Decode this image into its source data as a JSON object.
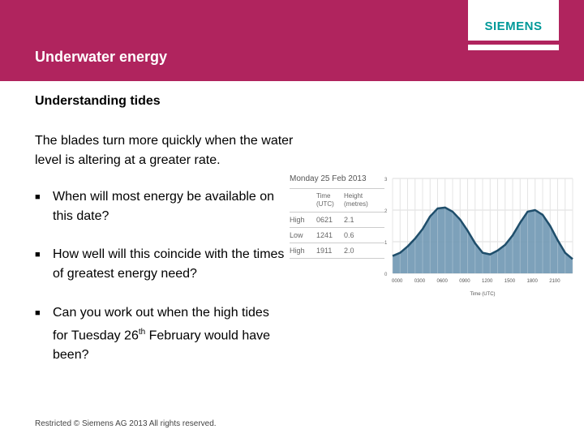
{
  "header": {
    "title": "Underwater energy",
    "logo": "SIEMENS",
    "color": "#b0245e"
  },
  "subtitle": "Understanding tides",
  "intro": "The blades turn more quickly when the water level is altering at a greater rate.",
  "bullets": [
    {
      "text": "When will most energy be available on this date?"
    },
    {
      "text": "How well will this coincide with the times of greatest energy need?"
    },
    {
      "pre": "Can you work out when the high tides for Tuesday 26",
      "sup": "th",
      "post": " February would have been?"
    }
  ],
  "footer": "Restricted © Siemens AG 2013 All rights reserved.",
  "tide_table": {
    "date": "Monday 25 Feb 2013",
    "col_time": "Time (UTC)",
    "col_height": "Height (metres)",
    "rows": [
      {
        "type": "High",
        "time": "0621",
        "height": "2.1"
      },
      {
        "type": "Low",
        "time": "1241",
        "height": "0.6"
      },
      {
        "type": "High",
        "time": "1911",
        "height": "2.0"
      }
    ]
  },
  "chart_data": {
    "type": "area",
    "xlabel": "Time (UTC)",
    "ylabel": "",
    "ylim": [
      0,
      3
    ],
    "xlim": [
      0,
      24
    ],
    "xticks": [
      "0000",
      "0300",
      "0600",
      "0900",
      "1200",
      "1500",
      "1800",
      "2100"
    ],
    "yticks": [
      "0",
      "1",
      "2",
      "3"
    ],
    "grid": true,
    "color": "#6f97b3",
    "line_color": "#1f4e6b",
    "x": [
      0,
      1,
      2,
      3,
      4,
      5,
      6,
      7,
      8,
      9,
      10,
      11,
      12,
      13,
      14,
      15,
      16,
      17,
      18,
      19,
      20,
      21,
      22,
      23,
      24
    ],
    "y": [
      0.55,
      0.65,
      0.85,
      1.1,
      1.4,
      1.8,
      2.05,
      2.08,
      1.95,
      1.7,
      1.35,
      0.95,
      0.65,
      0.6,
      0.72,
      0.9,
      1.2,
      1.6,
      1.95,
      2.0,
      1.85,
      1.5,
      1.05,
      0.65,
      0.45
    ]
  }
}
